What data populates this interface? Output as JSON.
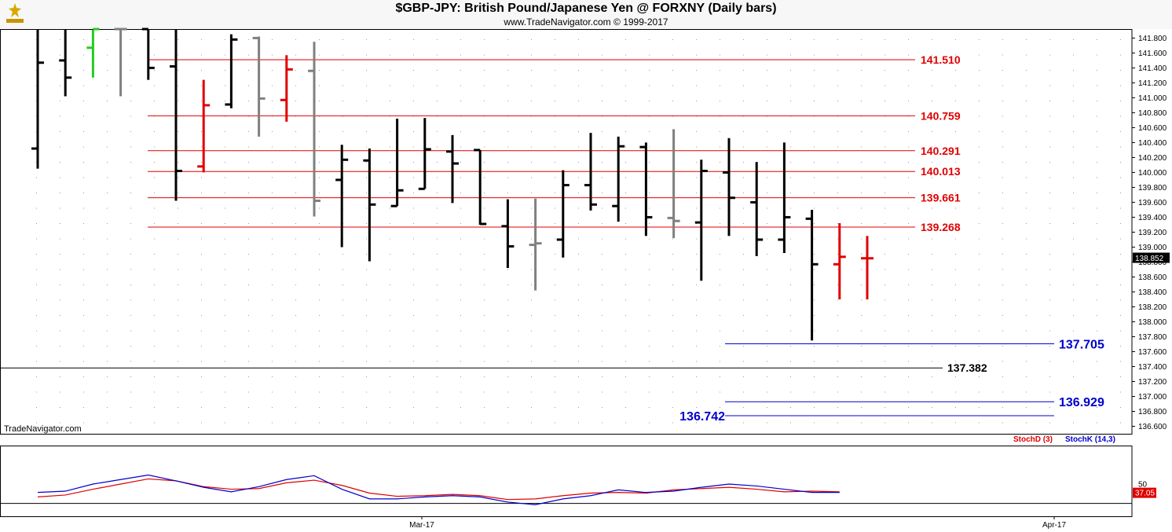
{
  "header": {
    "title": "$GBP-JPY:  British Pound/Japanese Yen @ FORXNY  (Daily bars)",
    "subtitle": "www.TradeNavigator.com © 1999-2017"
  },
  "watermark": "TradeNavigator.com",
  "legend": {
    "stochd": "StochD (3)",
    "stochk": "StochK (14,3)"
  },
  "colors": {
    "up": "#000000",
    "down": "#000000",
    "red": "#e00000",
    "gray": "#808080",
    "green": "#22cc22",
    "blue": "#0000cc"
  },
  "chart_data": [
    {
      "type": "ohlc",
      "title": "$GBP-JPY:  British Pound/Japanese Yen @ FORXNY  (Daily bars)",
      "ylim": [
        136.5,
        141.92
      ],
      "y_ticks": [
        "141.800",
        "141.600",
        "141.400",
        "141.200",
        "141.000",
        "140.800",
        "140.600",
        "140.400",
        "140.200",
        "140.000",
        "139.800",
        "139.600",
        "139.400",
        "139.200",
        "139.000",
        "138.800",
        "138.600",
        "138.400",
        "138.200",
        "138.000",
        "137.800",
        "137.600",
        "137.400",
        "137.200",
        "137.000",
        "136.800",
        "136.600"
      ],
      "x_labels": [
        "Mar-17",
        "Apr-17"
      ],
      "last_price": "138.852",
      "bars": [
        {
          "o": 140.32,
          "h": 141.92,
          "l": 140.05,
          "c": 141.47,
          "color": "black"
        },
        {
          "o": 141.5,
          "h": 141.92,
          "l": 141.02,
          "c": 141.27,
          "color": "black"
        },
        {
          "o": 141.67,
          "h": 141.92,
          "l": 141.27,
          "c": 141.92,
          "color": "green"
        },
        {
          "o": 141.92,
          "h": 141.92,
          "l": 141.02,
          "c": 141.92,
          "color": "gray"
        },
        {
          "o": 141.92,
          "h": 141.92,
          "l": 141.24,
          "c": 141.4,
          "color": "black"
        },
        {
          "o": 141.42,
          "h": 141.92,
          "l": 139.62,
          "c": 140.02,
          "color": "black"
        },
        {
          "o": 140.08,
          "h": 141.24,
          "l": 140.0,
          "c": 140.9,
          "color": "red"
        },
        {
          "o": 140.91,
          "h": 141.85,
          "l": 140.86,
          "c": 141.78,
          "color": "black"
        },
        {
          "o": 141.8,
          "h": 141.82,
          "l": 140.48,
          "c": 140.99,
          "color": "gray"
        },
        {
          "o": 140.97,
          "h": 141.57,
          "l": 140.68,
          "c": 141.38,
          "color": "red"
        },
        {
          "o": 141.36,
          "h": 141.75,
          "l": 139.41,
          "c": 139.62,
          "color": "gray"
        },
        {
          "o": 139.9,
          "h": 140.37,
          "l": 139.0,
          "c": 140.17,
          "color": "black"
        },
        {
          "o": 140.16,
          "h": 140.32,
          "l": 138.81,
          "c": 139.57,
          "color": "black"
        },
        {
          "o": 139.55,
          "h": 140.72,
          "l": 139.55,
          "c": 139.76,
          "color": "black"
        },
        {
          "o": 139.78,
          "h": 140.73,
          "l": 139.78,
          "c": 140.31,
          "color": "black"
        },
        {
          "o": 140.28,
          "h": 140.5,
          "l": 139.59,
          "c": 140.12,
          "color": "black"
        },
        {
          "o": 140.3,
          "h": 140.3,
          "l": 139.3,
          "c": 139.31,
          "color": "black"
        },
        {
          "o": 139.28,
          "h": 139.64,
          "l": 138.72,
          "c": 139.01,
          "color": "black"
        },
        {
          "o": 139.03,
          "h": 139.65,
          "l": 138.42,
          "c": 139.05,
          "color": "gray"
        },
        {
          "o": 139.1,
          "h": 140.03,
          "l": 138.86,
          "c": 139.83,
          "color": "black"
        },
        {
          "o": 139.83,
          "h": 140.53,
          "l": 139.49,
          "c": 139.57,
          "color": "black"
        },
        {
          "o": 139.55,
          "h": 140.48,
          "l": 139.34,
          "c": 140.35,
          "color": "black"
        },
        {
          "o": 140.34,
          "h": 140.4,
          "l": 139.15,
          "c": 139.4,
          "color": "black"
        },
        {
          "o": 139.39,
          "h": 140.58,
          "l": 139.12,
          "c": 139.35,
          "color": "gray"
        },
        {
          "o": 139.33,
          "h": 140.17,
          "l": 138.55,
          "c": 140.02,
          "color": "black"
        },
        {
          "o": 140.0,
          "h": 140.46,
          "l": 139.15,
          "c": 139.66,
          "color": "black"
        },
        {
          "o": 139.6,
          "h": 140.14,
          "l": 138.88,
          "c": 139.1,
          "color": "black"
        },
        {
          "o": 139.1,
          "h": 140.4,
          "l": 138.92,
          "c": 139.4,
          "color": "black"
        },
        {
          "o": 139.38,
          "h": 139.5,
          "l": 137.75,
          "c": 138.77,
          "color": "black"
        },
        {
          "o": 138.77,
          "h": 139.32,
          "l": 138.3,
          "c": 138.87,
          "color": "red"
        },
        {
          "o": 138.85,
          "h": 139.15,
          "l": 138.3,
          "c": 138.85,
          "color": "red"
        }
      ],
      "levels": [
        {
          "value": 141.51,
          "label": "141.510",
          "color": "red"
        },
        {
          "value": 140.759,
          "label": "140.759",
          "color": "red"
        },
        {
          "value": 140.291,
          "label": "140.291",
          "color": "red"
        },
        {
          "value": 140.013,
          "label": "140.013",
          "color": "red"
        },
        {
          "value": 139.661,
          "label": "139.661",
          "color": "red"
        },
        {
          "value": 139.268,
          "label": "139.268",
          "color": "red"
        },
        {
          "value": 137.705,
          "label": "137.705",
          "color": "blue"
        },
        {
          "value": 137.382,
          "label": "137.382",
          "color": "black"
        },
        {
          "value": 136.929,
          "label": "136.929",
          "color": "blue"
        },
        {
          "value": 136.742,
          "label": "136.742",
          "color": "blue"
        }
      ]
    },
    {
      "type": "line",
      "title": "",
      "ylim": [
        0,
        100
      ],
      "y_ticks": [
        "50"
      ],
      "last_value": "37.05",
      "series": [
        {
          "name": "StochD (3)",
          "color": "red",
          "values": [
            30,
            33,
            42,
            50,
            58,
            55,
            46,
            42,
            43,
            52,
            56,
            48,
            36,
            31,
            32,
            34,
            32,
            26,
            27,
            32,
            36,
            37,
            36,
            41,
            43,
            45,
            42,
            38,
            39,
            38
          ]
        },
        {
          "name": "StochK (14,3)",
          "color": "blue",
          "values": [
            37,
            39,
            50,
            57,
            64,
            55,
            45,
            38,
            46,
            57,
            63,
            42,
            27,
            27,
            30,
            32,
            30,
            22,
            18,
            27,
            32,
            41,
            37,
            39,
            45,
            50,
            47,
            42,
            37,
            37
          ]
        }
      ]
    }
  ]
}
